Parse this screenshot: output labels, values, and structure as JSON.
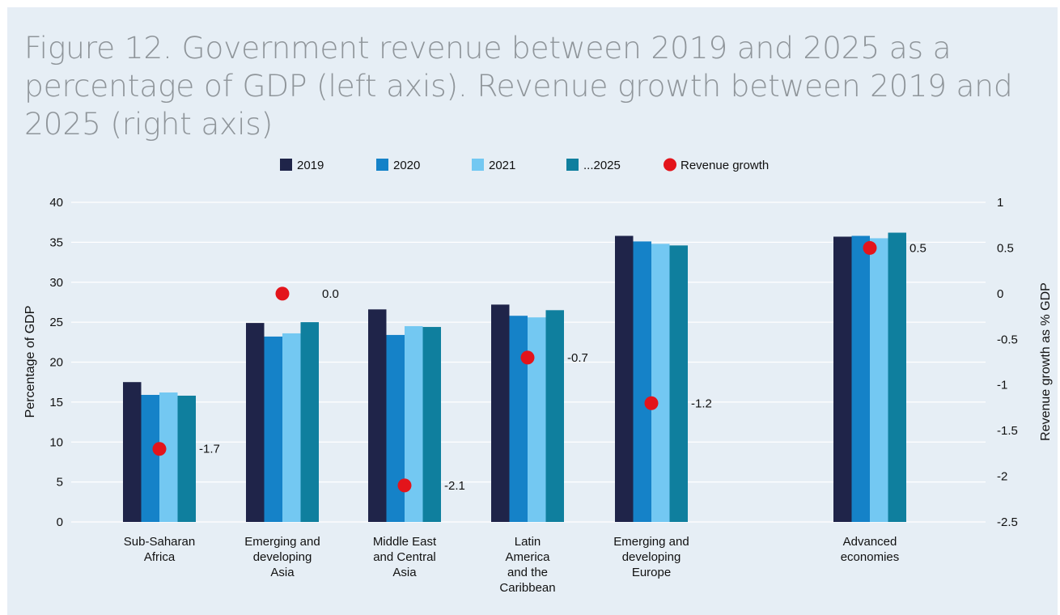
{
  "title": "Figure 12. Government revenue between 2019 and 2025 as a percentage of GDP (left axis). Revenue growth between 2019 and 2025 (right axis)",
  "chart_data": {
    "type": "bar",
    "categories": [
      [
        "Sub-Saharan",
        "Africa"
      ],
      [
        "Emerging and",
        "developing",
        "Asia"
      ],
      [
        "Middle East",
        "and Central",
        "Asia"
      ],
      [
        "Latin",
        "America",
        "and the",
        "Caribbean"
      ],
      [
        "Emerging and",
        "developing",
        "Europe"
      ],
      [
        "Advanced",
        "economies"
      ]
    ],
    "series": [
      {
        "name": "2019",
        "color": "#1f2449",
        "values": [
          17.5,
          24.9,
          26.6,
          27.2,
          35.8,
          35.7
        ]
      },
      {
        "name": "2020",
        "color": "#1582c8",
        "values": [
          15.9,
          23.2,
          23.4,
          25.8,
          35.1,
          35.8
        ]
      },
      {
        "name": "2021",
        "color": "#73c8f2",
        "values": [
          16.2,
          23.6,
          24.5,
          25.6,
          34.8,
          35.5
        ]
      },
      {
        "name": "...2025",
        "color": "#0f7f9e",
        "values": [
          15.8,
          25.0,
          24.4,
          26.5,
          34.6,
          36.2
        ]
      }
    ],
    "growth": {
      "name": "Revenue growth",
      "color": "#e3141b",
      "values": [
        -1.7,
        0.0,
        -2.1,
        -0.7,
        -1.2,
        0.5
      ],
      "labels": [
        "-1.7",
        "0.0",
        "-2.1",
        "-0.7",
        "-1.2",
        "0.5"
      ]
    },
    "ylabel": "Percentage of GDP",
    "y2label": "Revenue growth as % GDP",
    "ylim": [
      0,
      40
    ],
    "y2lim": [
      -2.5,
      1
    ],
    "yticks": [
      "0",
      "5",
      "10",
      "15",
      "20",
      "25",
      "30",
      "35",
      "40"
    ],
    "y2ticks": [
      "-2.5",
      "-2",
      "-1.5",
      "-1",
      "-0.5",
      "0",
      "0.5",
      "1"
    ],
    "grid": true,
    "legend_position": "top"
  }
}
